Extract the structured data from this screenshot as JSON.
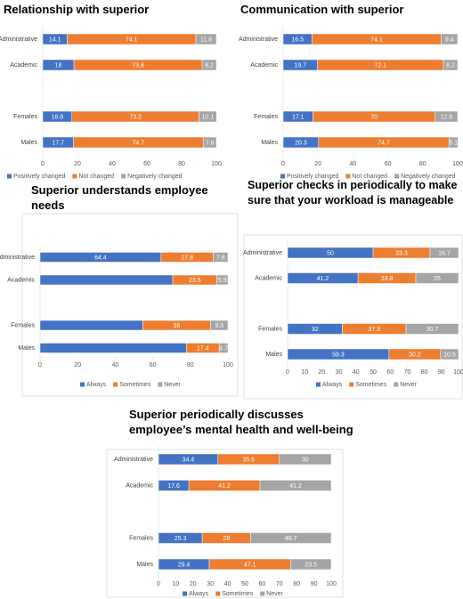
{
  "chart_data": [
    {
      "type": "bar",
      "orientation": "horizontal",
      "stacked": true,
      "title": "Relationship with superior",
      "categories": [
        "Administrative",
        "Academic",
        null,
        "Females",
        "Males"
      ],
      "series": [
        {
          "name": "Positively changed",
          "color": "#4472c4",
          "values": [
            14.1,
            18,
            null,
            16.8,
            17.7
          ]
        },
        {
          "name": "Not changed",
          "color": "#ed7d31",
          "values": [
            74.1,
            73.8,
            null,
            73.2,
            74.7
          ]
        },
        {
          "name": "Negatively changed",
          "color": "#a5a5a5",
          "values": [
            11.8,
            8.2,
            null,
            10.1,
            7.6
          ]
        }
      ],
      "xlim": [
        0,
        100
      ],
      "xticks": [
        0,
        20,
        40,
        60,
        80,
        100
      ],
      "legend": "bottom"
    },
    {
      "type": "bar",
      "orientation": "horizontal",
      "stacked": true,
      "title": "Communication with superior",
      "categories": [
        "Administrative",
        "Academic",
        null,
        "Females",
        "Males"
      ],
      "series": [
        {
          "name": "Positively changed",
          "color": "#4472c4",
          "values": [
            16.5,
            19.7,
            null,
            17.1,
            20.3
          ]
        },
        {
          "name": "Not changed",
          "color": "#ed7d31",
          "values": [
            74.1,
            72.1,
            null,
            70,
            74.7
          ]
        },
        {
          "name": "Negatively changed",
          "color": "#a5a5a5",
          "values": [
            9.4,
            8.2,
            null,
            12.9,
            5.1
          ]
        }
      ],
      "xlim": [
        0,
        100
      ],
      "xticks": [
        0,
        20,
        40,
        60,
        80,
        100
      ],
      "legend": "bottom"
    },
    {
      "type": "bar",
      "orientation": "horizontal",
      "stacked": true,
      "title": "Superior understands employee needs",
      "categories": [
        "Administrative",
        "Academic",
        null,
        "Females",
        "Males"
      ],
      "series": [
        {
          "name": "Always",
          "color": "#4472c4",
          "values": [
            64.4,
            70.6,
            null,
            54.7,
            77.9
          ],
          "value_labels": [
            "64.4",
            null,
            null,
            null,
            null
          ]
        },
        {
          "name": "Sometimes",
          "color": "#ed7d31",
          "values": [
            27.8,
            23.5,
            null,
            36,
            17.4
          ]
        },
        {
          "name": "Never",
          "color": "#a5a5a5",
          "values": [
            7.8,
            5.9,
            null,
            9.3,
            4.7
          ]
        }
      ],
      "xlim": [
        0,
        100
      ],
      "xticks": [
        0,
        20,
        40,
        60,
        80,
        100
      ],
      "legend": "bottom"
    },
    {
      "type": "bar",
      "orientation": "horizontal",
      "stacked": true,
      "title": "Superior checks in periodically to make sure that your workload is manageable",
      "categories": [
        "Administrative",
        "Academic",
        null,
        "Females",
        "Males"
      ],
      "series": [
        {
          "name": "Always",
          "color": "#4472c4",
          "values": [
            50,
            41.2,
            null,
            32,
            59.3
          ]
        },
        {
          "name": "Sometimes",
          "color": "#ed7d31",
          "values": [
            33.3,
            33.8,
            null,
            37.3,
            30.2
          ]
        },
        {
          "name": "Never",
          "color": "#a5a5a5",
          "values": [
            16.7,
            25,
            null,
            30.7,
            10.5
          ]
        }
      ],
      "xlim": [
        0,
        100
      ],
      "xticks": [
        0,
        10,
        20,
        30,
        40,
        50,
        60,
        70,
        80,
        90,
        100
      ],
      "legend": "bottom"
    },
    {
      "type": "bar",
      "orientation": "horizontal",
      "stacked": true,
      "title": "Superior periodically discusses employee’s mental health and well-being",
      "categories": [
        "Administrative",
        "Academic",
        null,
        "Females",
        "Males"
      ],
      "series": [
        {
          "name": "Always",
          "color": "#4472c4",
          "values": [
            34.4,
            17.6,
            null,
            25.3,
            29.4
          ]
        },
        {
          "name": "Sometimes",
          "color": "#ed7d31",
          "values": [
            35.6,
            41.2,
            null,
            28,
            47.1
          ]
        },
        {
          "name": "Never",
          "color": "#a5a5a5",
          "values": [
            30,
            41.2,
            null,
            46.7,
            23.5
          ]
        }
      ],
      "xlim": [
        0,
        100
      ],
      "xticks": [
        0,
        10,
        20,
        30,
        40,
        50,
        60,
        70,
        80,
        90,
        100
      ],
      "legend": "bottom"
    }
  ]
}
